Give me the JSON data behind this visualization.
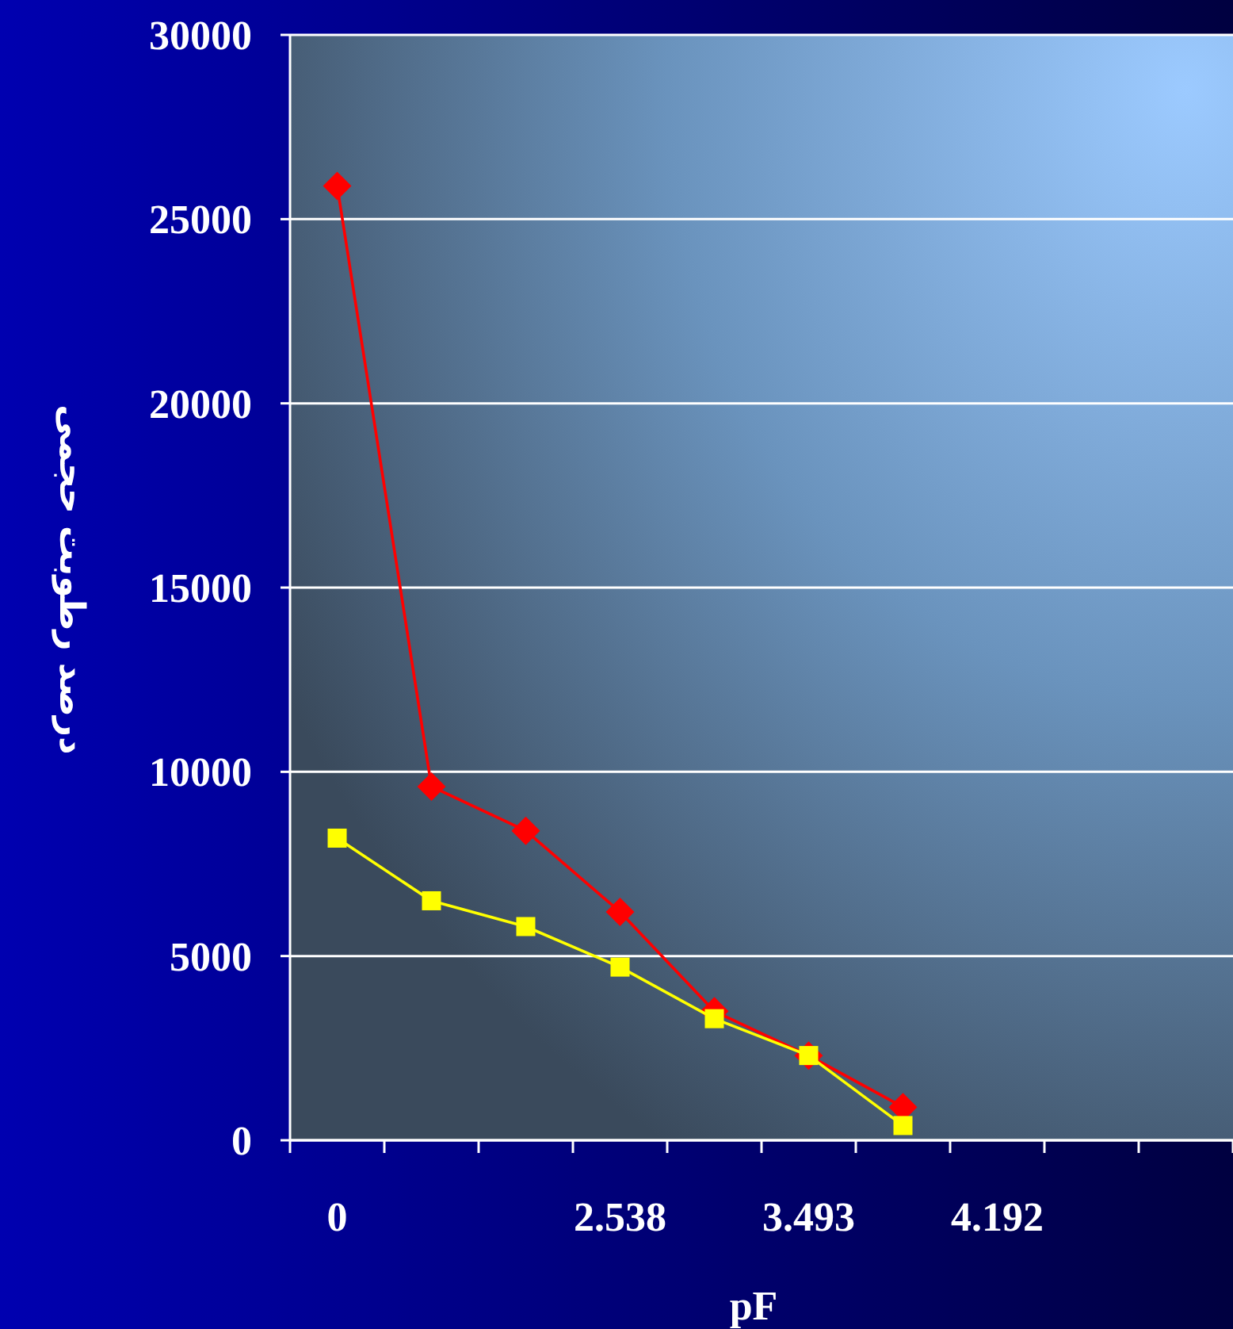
{
  "chart_data": {
    "type": "line",
    "xlabel": "pF",
    "ylabel": "درصد رطوبت حجمی",
    "categories": [
      "0",
      null,
      null,
      "2.538",
      null,
      "3.493",
      null,
      "4.192",
      null,
      null
    ],
    "series": [
      {
        "color": "#ff0000",
        "marker": "diamond",
        "values": [
          25900,
          9600,
          8400,
          6200,
          3500,
          2300,
          900,
          null,
          null,
          null
        ]
      },
      {
        "color": "#ffff00",
        "marker": "square",
        "values": [
          8200,
          6500,
          5800,
          4700,
          3300,
          2300,
          400,
          null,
          null,
          null
        ]
      }
    ],
    "ylim": [
      0,
      30000
    ],
    "yticks": [
      0,
      5000,
      10000,
      15000,
      20000,
      25000,
      30000
    ],
    "grid": "y"
  }
}
